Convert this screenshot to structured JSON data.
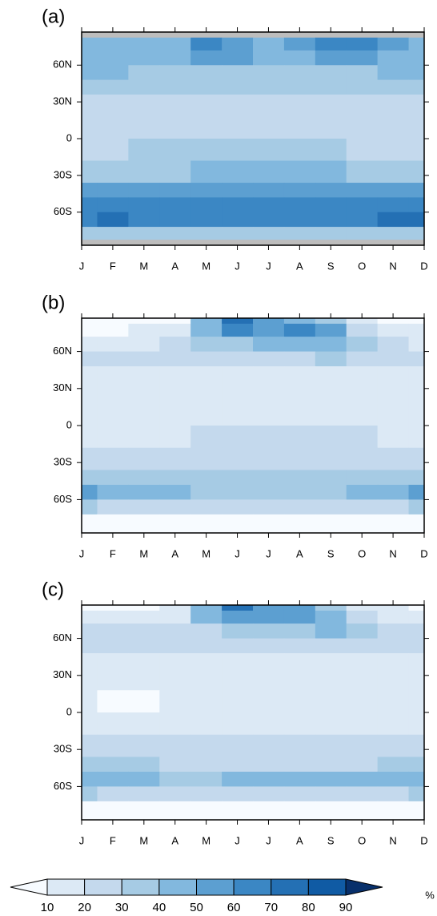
{
  "chart_data": [
    {
      "type": "heatmap",
      "title": "(a)",
      "categories": [
        "J",
        "F",
        "M",
        "A",
        "M",
        "J",
        "J",
        "A",
        "S",
        "O",
        "N",
        "D"
      ],
      "lat_edges": [
        90,
        82.5,
        72,
        60,
        48,
        36,
        18,
        0,
        -18,
        -36,
        -48,
        -60,
        -72,
        -82.5,
        -90
      ],
      "ylim": [
        -87,
        87
      ],
      "yticks": [
        {
          "value": 60,
          "label": "60N"
        },
        {
          "value": 30,
          "label": "30N"
        },
        0,
        {
          "value": -30,
          "label": "30S"
        },
        {
          "value": -60,
          "label": "60S"
        }
      ],
      "values": [
        [
          null,
          null,
          null,
          null,
          null,
          null,
          null,
          null,
          null,
          null,
          null,
          null
        ],
        [
          45,
          45,
          40,
          45,
          65,
          55,
          45,
          55,
          65,
          60,
          50,
          40
        ],
        [
          45,
          45,
          45,
          45,
          50,
          50,
          45,
          45,
          50,
          50,
          45,
          45
        ],
        [
          40,
          40,
          35,
          35,
          35,
          35,
          35,
          35,
          35,
          35,
          40,
          40
        ],
        [
          30,
          30,
          30,
          30,
          30,
          30,
          30,
          30,
          30,
          30,
          30,
          30
        ],
        [
          28,
          28,
          25,
          22,
          22,
          22,
          22,
          22,
          22,
          22,
          25,
          28
        ],
        [
          25,
          25,
          25,
          25,
          25,
          25,
          25,
          25,
          25,
          25,
          25,
          25
        ],
        [
          28,
          28,
          30,
          32,
          32,
          32,
          30,
          30,
          30,
          28,
          28,
          28
        ],
        [
          35,
          35,
          35,
          38,
          42,
          42,
          45,
          42,
          40,
          38,
          35,
          35
        ],
        [
          55,
          55,
          55,
          55,
          55,
          55,
          55,
          55,
          55,
          55,
          55,
          55
        ],
        [
          62,
          62,
          62,
          62,
          62,
          62,
          62,
          62,
          62,
          62,
          62,
          62
        ],
        [
          68,
          72,
          68,
          65,
          68,
          68,
          68,
          68,
          68,
          68,
          75,
          75
        ],
        [
          35,
          35,
          35,
          35,
          35,
          35,
          35,
          35,
          35,
          35,
          35,
          35
        ],
        [
          null,
          null,
          null,
          null,
          null,
          null,
          null,
          null,
          null,
          null,
          null,
          null
        ]
      ]
    },
    {
      "type": "heatmap",
      "title": "(b)",
      "categories": [
        "J",
        "F",
        "M",
        "A",
        "M",
        "J",
        "J",
        "A",
        "S",
        "O",
        "N",
        "D"
      ],
      "lat_edges": [
        90,
        82.5,
        72,
        60,
        48,
        36,
        18,
        0,
        -18,
        -36,
        -48,
        -60,
        -72,
        -82.5,
        -90
      ],
      "ylim": [
        -87,
        87
      ],
      "yticks": [
        {
          "value": 60,
          "label": "60N"
        },
        {
          "value": 30,
          "label": "30N"
        },
        0,
        {
          "value": -30,
          "label": "30S"
        },
        {
          "value": -60,
          "label": "60S"
        }
      ],
      "values": [
        [
          5,
          5,
          5,
          8,
          40,
          75,
          55,
          45,
          30,
          10,
          5,
          5
        ],
        [
          8,
          8,
          10,
          15,
          45,
          60,
          55,
          60,
          50,
          20,
          15,
          10
        ],
        [
          15,
          15,
          18,
          20,
          30,
          35,
          40,
          40,
          45,
          30,
          20,
          15
        ],
        [
          25,
          25,
          25,
          25,
          25,
          25,
          25,
          25,
          30,
          25,
          25,
          25
        ],
        [
          15,
          15,
          15,
          15,
          15,
          15,
          15,
          15,
          15,
          15,
          15,
          15
        ],
        [
          12,
          12,
          12,
          12,
          12,
          12,
          12,
          12,
          12,
          12,
          12,
          12
        ],
        [
          15,
          15,
          15,
          15,
          15,
          15,
          15,
          15,
          15,
          15,
          15,
          15
        ],
        [
          18,
          15,
          15,
          18,
          20,
          20,
          20,
          20,
          20,
          20,
          18,
          18
        ],
        [
          25,
          25,
          25,
          25,
          25,
          25,
          22,
          22,
          22,
          22,
          25,
          25
        ],
        [
          35,
          35,
          35,
          30,
          30,
          30,
          30,
          30,
          30,
          30,
          35,
          35
        ],
        [
          50,
          45,
          45,
          40,
          38,
          35,
          35,
          35,
          38,
          40,
          45,
          50
        ],
        [
          35,
          25,
          25,
          22,
          20,
          20,
          20,
          20,
          20,
          22,
          25,
          35
        ],
        [
          8,
          8,
          8,
          8,
          8,
          8,
          8,
          8,
          8,
          8,
          8,
          8
        ],
        [
          5,
          5,
          5,
          5,
          5,
          5,
          5,
          5,
          5,
          5,
          5,
          5
        ]
      ]
    },
    {
      "type": "heatmap",
      "title": "(c)",
      "categories": [
        "J",
        "F",
        "M",
        "A",
        "M",
        "J",
        "J",
        "A",
        "S",
        "O",
        "N",
        "D"
      ],
      "lat_edges": [
        90,
        82.5,
        72,
        60,
        48,
        36,
        18,
        0,
        -18,
        -36,
        -48,
        -60,
        -72,
        -82.5,
        -90
      ],
      "ylim": [
        -87,
        87
      ],
      "yticks": [
        {
          "value": 60,
          "label": "60N"
        },
        {
          "value": 30,
          "label": "30N"
        },
        0,
        {
          "value": -30,
          "label": "30S"
        },
        {
          "value": -60,
          "label": "60S"
        }
      ],
      "values": [
        [
          8,
          8,
          8,
          12,
          40,
          70,
          55,
          50,
          35,
          15,
          10,
          8
        ],
        [
          12,
          12,
          12,
          18,
          40,
          55,
          50,
          55,
          45,
          25,
          15,
          12
        ],
        [
          20,
          20,
          20,
          22,
          28,
          32,
          35,
          38,
          40,
          30,
          25,
          20
        ],
        [
          25,
          25,
          25,
          22,
          22,
          22,
          22,
          22,
          22,
          22,
          22,
          25
        ],
        [
          15,
          15,
          15,
          15,
          15,
          15,
          15,
          15,
          15,
          15,
          15,
          15
        ],
        [
          12,
          12,
          12,
          12,
          12,
          12,
          12,
          12,
          12,
          12,
          12,
          12
        ],
        [
          12,
          8,
          8,
          12,
          12,
          12,
          12,
          12,
          12,
          12,
          12,
          12
        ],
        [
          15,
          15,
          15,
          15,
          18,
          18,
          18,
          18,
          18,
          15,
          15,
          15
        ],
        [
          20,
          20,
          20,
          20,
          22,
          22,
          22,
          22,
          22,
          22,
          20,
          20
        ],
        [
          32,
          32,
          30,
          28,
          28,
          28,
          28,
          28,
          28,
          28,
          30,
          32
        ],
        [
          45,
          42,
          40,
          38,
          38,
          42,
          45,
          45,
          45,
          45,
          45,
          48
        ],
        [
          30,
          25,
          22,
          20,
          20,
          20,
          20,
          20,
          20,
          20,
          25,
          30
        ],
        [
          8,
          8,
          8,
          8,
          8,
          8,
          8,
          8,
          8,
          8,
          8,
          8
        ],
        [
          3,
          3,
          3,
          3,
          3,
          3,
          3,
          3,
          3,
          3,
          3,
          3
        ]
      ]
    }
  ],
  "colorbar": {
    "levels": [
      10,
      20,
      30,
      40,
      50,
      60,
      70,
      80,
      90
    ],
    "colors": [
      "#f7fbff",
      "#dce9f5",
      "#c4d9ed",
      "#a6cbe4",
      "#82b8de",
      "#5c9fd1",
      "#3b87c4",
      "#2470b4",
      "#105ba4",
      "#08306b"
    ],
    "missing_color": "#bdbdbd",
    "unit": "%"
  }
}
